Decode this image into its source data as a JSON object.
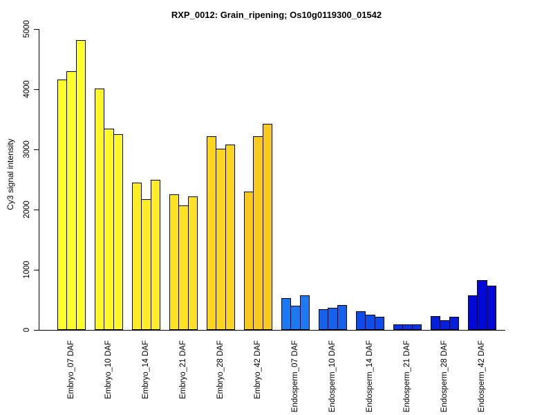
{
  "chart_data": {
    "type": "bar",
    "title": "RXP_0012: Grain_ripening; Os10g0119300_01542",
    "xlabel": "",
    "ylabel": "Cy3 signal intensity",
    "ylim": [
      0,
      5000
    ],
    "yticks": [
      0,
      1000,
      2000,
      3000,
      4000,
      5000
    ],
    "grid": false,
    "legend_position": "none",
    "bars_per_group": 3,
    "bar_border_color": "#000000",
    "groups": [
      {
        "label": "Embryo_07 DAF",
        "color": "#FFFF2E",
        "values": [
          4160,
          4300,
          4820
        ]
      },
      {
        "label": "Embryo_10 DAF",
        "color": "#FFF62B",
        "values": [
          4010,
          3350,
          3250
        ]
      },
      {
        "label": "Embryo_14 DAF",
        "color": "#FFEC28",
        "values": [
          2450,
          2170,
          2490
        ]
      },
      {
        "label": "Embryo_21 DAF",
        "color": "#FFE125",
        "values": [
          2250,
          2070,
          2220
        ]
      },
      {
        "label": "Embryo_28 DAF",
        "color": "#FCD521",
        "values": [
          3220,
          3010,
          3080
        ]
      },
      {
        "label": "Embryo_42 DAF",
        "color": "#F8C91E",
        "values": [
          2300,
          3220,
          3420
        ]
      },
      {
        "label": "Endosperm_07 DAF",
        "color": "#1C79F2",
        "values": [
          530,
          400,
          570
        ]
      },
      {
        "label": "Endosperm_10 DAF",
        "color": "#1561EC",
        "values": [
          340,
          370,
          410
        ]
      },
      {
        "label": "Endosperm_14 DAF",
        "color": "#0F4BE6",
        "values": [
          310,
          250,
          215
        ]
      },
      {
        "label": "Endosperm_21 DAF",
        "color": "#0A35E0",
        "values": [
          95,
          90,
          90
        ]
      },
      {
        "label": "Endosperm_28 DAF",
        "color": "#0520DA",
        "values": [
          230,
          165,
          215
        ]
      },
      {
        "label": "Endosperm_42 DAF",
        "color": "#0009D5",
        "values": [
          580,
          830,
          740
        ]
      }
    ]
  }
}
